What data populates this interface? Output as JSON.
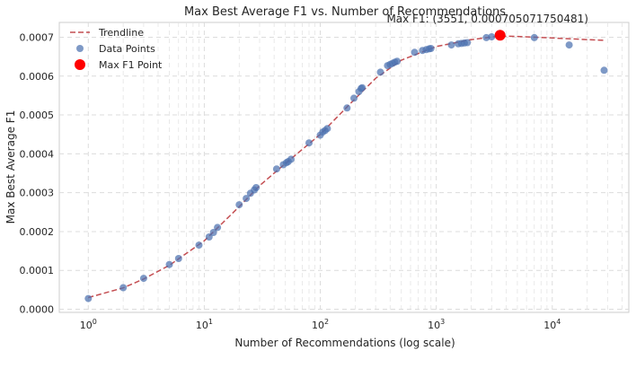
{
  "chart_data": {
    "type": "scatter",
    "title": "Max Best Average F1 vs. Number of Recommendations",
    "xlabel": "Number of Recommendations (log scale)",
    "ylabel": "Max Best Average F1",
    "x_scale": "log",
    "xlim_log10": [
      -0.25,
      4.66
    ],
    "ylim": [
      -8e-06,
      0.000738
    ],
    "x_ticks": [
      {
        "value": 1,
        "base": "10",
        "exp": "0"
      },
      {
        "value": 10,
        "base": "10",
        "exp": "1"
      },
      {
        "value": 100,
        "base": "10",
        "exp": "2"
      },
      {
        "value": 1000,
        "base": "10",
        "exp": "3"
      },
      {
        "value": 10000,
        "base": "10",
        "exp": "4"
      }
    ],
    "y_ticks": [
      {
        "value": 0.0,
        "label": "0.0000"
      },
      {
        "value": 0.0001,
        "label": "0.0001"
      },
      {
        "value": 0.0002,
        "label": "0.0002"
      },
      {
        "value": 0.0003,
        "label": "0.0003"
      },
      {
        "value": 0.0004,
        "label": "0.0004"
      },
      {
        "value": 0.0005,
        "label": "0.0005"
      },
      {
        "value": 0.0006,
        "label": "0.0006"
      },
      {
        "value": 0.0007,
        "label": "0.0007"
      }
    ],
    "grid": true,
    "legend_position": "top-left",
    "legend": [
      {
        "kind": "line",
        "label": "Trendline",
        "color": "#c44e52"
      },
      {
        "kind": "point",
        "label": "Data Points",
        "color": "#4c72b0"
      },
      {
        "kind": "max",
        "label": "Max F1 Point",
        "color": "#ff0000"
      }
    ],
    "series": [
      {
        "name": "Data Points",
        "color": "#4c72b0",
        "points": [
          [
            1,
            2.75e-05
          ],
          [
            2,
            5.55e-05
          ],
          [
            3,
            7.95e-05
          ],
          [
            5,
            0.000115
          ],
          [
            6,
            0.0001305
          ],
          [
            9,
            0.000165
          ],
          [
            11,
            0.000186
          ],
          [
            12,
            0.0001975
          ],
          [
            13,
            0.0002105
          ],
          [
            20,
            0.000269
          ],
          [
            23,
            0.000285
          ],
          [
            25,
            0.0002985
          ],
          [
            27,
            0.000307
          ],
          [
            28,
            0.000313
          ],
          [
            42,
            0.000361
          ],
          [
            48,
            0.000372
          ],
          [
            51,
            0.000377
          ],
          [
            53,
            0.00038
          ],
          [
            56,
            0.000386
          ],
          [
            80,
            0.000428
          ],
          [
            100,
            0.000448
          ],
          [
            105,
            0.000456
          ],
          [
            110,
            0.00046
          ],
          [
            115,
            0.000465
          ],
          [
            170,
            0.000518
          ],
          [
            195,
            0.000543
          ],
          [
            215,
            0.00056
          ],
          [
            225,
            0.000568
          ],
          [
            230,
            0.00057
          ],
          [
            330,
            0.00061
          ],
          [
            380,
            0.000627
          ],
          [
            400,
            0.00063
          ],
          [
            420,
            0.000633
          ],
          [
            440,
            0.000636
          ],
          [
            460,
            0.000638
          ],
          [
            650,
            0.000661
          ],
          [
            760,
            0.000666
          ],
          [
            820,
            0.000668
          ],
          [
            870,
            0.00067
          ],
          [
            900,
            0.000671
          ],
          [
            1350,
            0.00068
          ],
          [
            1550,
            0.000683
          ],
          [
            1650,
            0.000684
          ],
          [
            1750,
            0.000685
          ],
          [
            1850,
            0.000686
          ],
          [
            2700,
            0.000699
          ],
          [
            3000,
            0.000701
          ],
          [
            7000,
            0.000699
          ],
          [
            14000,
            0.00068
          ],
          [
            28000,
            0.000615
          ]
        ]
      },
      {
        "name": "Trendline",
        "color": "#c44e52",
        "points": [
          [
            1,
            3e-05
          ],
          [
            2,
            5.5e-05
          ],
          [
            3,
            7.8e-05
          ],
          [
            5,
            0.000113
          ],
          [
            10,
            0.000176
          ],
          [
            20,
            0.000264
          ],
          [
            30,
            0.000318
          ],
          [
            50,
            0.000375
          ],
          [
            100,
            0.00045
          ],
          [
            200,
            0.000542
          ],
          [
            300,
            0.000594
          ],
          [
            500,
            0.000641
          ],
          [
            1000,
            0.000676
          ],
          [
            2000,
            0.000694
          ],
          [
            3551,
            0.000703
          ],
          [
            5000,
            0.000702
          ],
          [
            10000,
            0.000698
          ],
          [
            20000,
            0.000694
          ],
          [
            28000,
            0.000692
          ]
        ]
      }
    ],
    "max_point": {
      "label": "Max F1 Point",
      "x": 3551,
      "y": 0.000705071750481,
      "color": "#ff0000",
      "annotation": "Max F1: (3551, 0.000705071750481)"
    }
  }
}
